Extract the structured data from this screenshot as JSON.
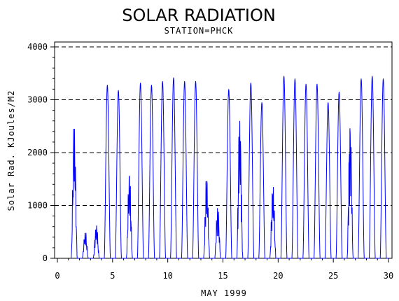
{
  "chart_data": {
    "type": "line",
    "title": "SOLAR RADIATION",
    "subtitle": "STATION=PHCK",
    "xlabel": "MAY 1999",
    "ylabel": "Solar Rad. KJoules/M2",
    "xlim": [
      0,
      30
    ],
    "ylim": [
      0,
      4000
    ],
    "x_ticks": [
      0,
      5,
      10,
      15,
      20,
      25,
      30
    ],
    "y_ticks": [
      0,
      1000,
      2000,
      3000,
      4000
    ],
    "grid": "horizontal dashed",
    "series_color": "#0000ff",
    "daily_peaks": [
      {
        "day": 1,
        "peak": 2450
      },
      {
        "day": 2,
        "peak": 480
      },
      {
        "day": 3,
        "peak": 620
      },
      {
        "day": 4,
        "peak": 3280
      },
      {
        "day": 5,
        "peak": 3180
      },
      {
        "day": 6,
        "peak": 1580
      },
      {
        "day": 7,
        "peak": 3320
      },
      {
        "day": 8,
        "peak": 3280
      },
      {
        "day": 9,
        "peak": 3350
      },
      {
        "day": 10,
        "peak": 3420
      },
      {
        "day": 11,
        "peak": 3350
      },
      {
        "day": 12,
        "peak": 3350
      },
      {
        "day": 13,
        "peak": 1500
      },
      {
        "day": 14,
        "peak": 950
      },
      {
        "day": 15,
        "peak": 3200
      },
      {
        "day": 16,
        "peak": 2600
      },
      {
        "day": 17,
        "peak": 3320
      },
      {
        "day": 18,
        "peak": 2950
      },
      {
        "day": 19,
        "peak": 1350
      },
      {
        "day": 20,
        "peak": 3450
      },
      {
        "day": 21,
        "peak": 3400
      },
      {
        "day": 22,
        "peak": 3300
      },
      {
        "day": 23,
        "peak": 3300
      },
      {
        "day": 24,
        "peak": 2950
      },
      {
        "day": 25,
        "peak": 3150
      },
      {
        "day": 26,
        "peak": 2550
      },
      {
        "day": 27,
        "peak": 3400
      },
      {
        "day": 28,
        "peak": 3450
      },
      {
        "day": 29,
        "peak": 3400
      }
    ]
  }
}
